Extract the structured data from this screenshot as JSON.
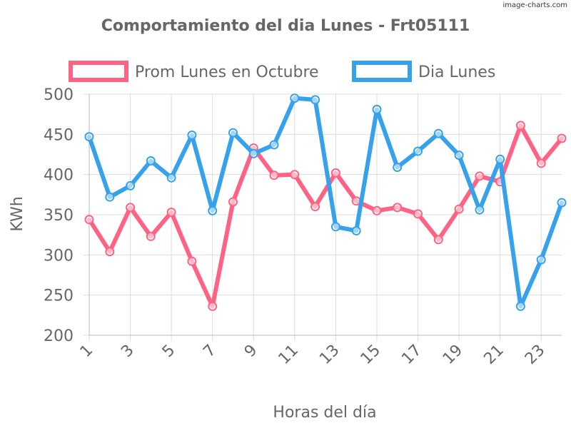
{
  "watermark": "image-charts.com",
  "chart_data": {
    "type": "line",
    "title": "Comportamiento del dia Lunes - Frt05111",
    "xlabel": "Horas del día",
    "ylabel": "KWh",
    "ylim": [
      200,
      500
    ],
    "yticks": [
      200,
      250,
      300,
      350,
      400,
      450,
      500
    ],
    "x": [
      1,
      2,
      3,
      4,
      5,
      6,
      7,
      8,
      9,
      10,
      11,
      12,
      13,
      14,
      15,
      16,
      17,
      18,
      19,
      20,
      21,
      22,
      23,
      24
    ],
    "xtick_labels": [
      "1",
      "3",
      "5",
      "7",
      "9",
      "11",
      "13",
      "15",
      "17",
      "19",
      "21",
      "23"
    ],
    "grid": true,
    "legend_position": "top",
    "series": [
      {
        "name": "Prom Lunes en Octubre",
        "color": "#ff6384",
        "values": [
          344,
          304,
          359,
          323,
          353,
          292,
          236,
          366,
          433,
          399,
          400,
          360,
          402,
          367,
          355,
          359,
          351,
          319,
          357,
          398,
          391,
          461,
          414,
          445
        ]
      },
      {
        "name": "Dia Lunes",
        "color": "#36a2eb",
        "values": [
          447,
          372,
          386,
          417,
          396,
          449,
          355,
          452,
          426,
          437,
          495,
          493,
          335,
          330,
          481,
          409,
          429,
          451,
          424,
          356,
          419,
          236,
          294,
          365
        ]
      }
    ]
  }
}
